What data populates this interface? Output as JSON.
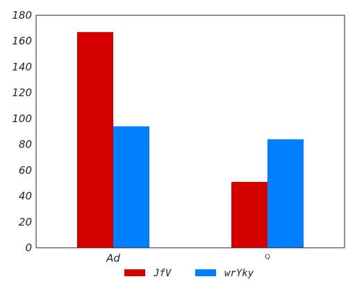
{
  "chart_data": {
    "type": "bar",
    "categories": [
      "Ad",
      "Q"
    ],
    "series": [
      {
        "name": "JfV",
        "values": [
          167,
          51
        ],
        "color": "#d40000"
      },
      {
        "name": "wrYky",
        "values": [
          94,
          84
        ],
        "color": "#007fff"
      }
    ],
    "ylim": [
      0,
      180
    ],
    "yticks": [
      0,
      20,
      40,
      60,
      80,
      100,
      120,
      140,
      160,
      180
    ],
    "grid": false,
    "legend": "bottom-center",
    "title": "",
    "xlabel": "",
    "ylabel": ""
  }
}
